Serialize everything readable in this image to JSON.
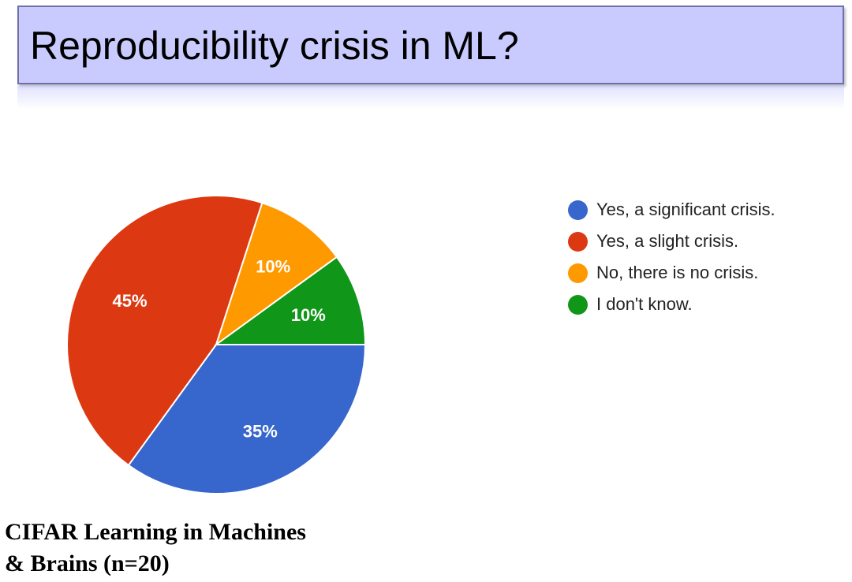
{
  "slide": {
    "title": "Reproducibility crisis in ML?",
    "caption_line1": "CIFAR Learning in Machines",
    "caption_line2": "& Brains (n=20)"
  },
  "chart_data": {
    "type": "pie",
    "title": "",
    "legend_position": "right",
    "slices": [
      {
        "label": "Yes, a significant crisis.",
        "value": 35,
        "display": "35%",
        "color": "#3766cc"
      },
      {
        "label": "Yes, a slight crisis.",
        "value": 45,
        "display": "45%",
        "color": "#dc3912"
      },
      {
        "label": "No, there is no crisis.",
        "value": 10,
        "display": "10%",
        "color": "#ff9900"
      },
      {
        "label": "I don't know.",
        "value": 10,
        "display": "10%",
        "color": "#109618"
      }
    ]
  }
}
